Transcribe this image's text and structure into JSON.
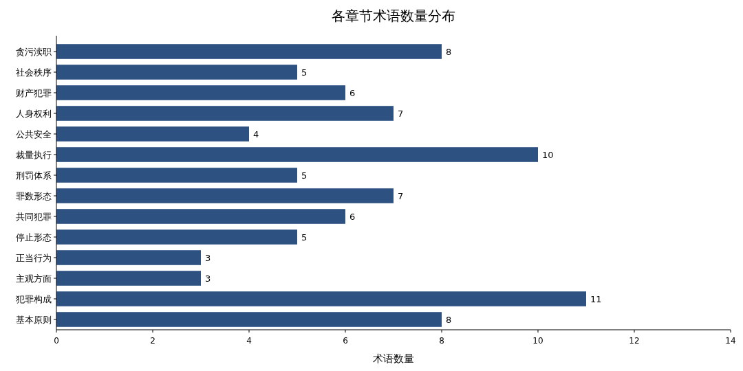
{
  "chart_data": {
    "type": "bar",
    "orientation": "horizontal",
    "title": "各章节术语数量分布",
    "xlabel": "术语数量",
    "categories": [
      "贪污渎职",
      "社会秩序",
      "财产犯罪",
      "人身权利",
      "公共安全",
      "裁量执行",
      "刑罚体系",
      "罪数形态",
      "共同犯罪",
      "停止形态",
      "正当行为",
      "主观方面",
      "犯罪构成",
      "基本原则"
    ],
    "values": [
      8,
      5,
      6,
      7,
      4,
      10,
      5,
      7,
      6,
      5,
      3,
      3,
      11,
      8
    ],
    "color": "#2d5282",
    "xlim": [
      0,
      14
    ],
    "xticks": [
      0,
      2,
      4,
      6,
      8,
      10,
      12,
      14
    ],
    "data_labels": true
  }
}
